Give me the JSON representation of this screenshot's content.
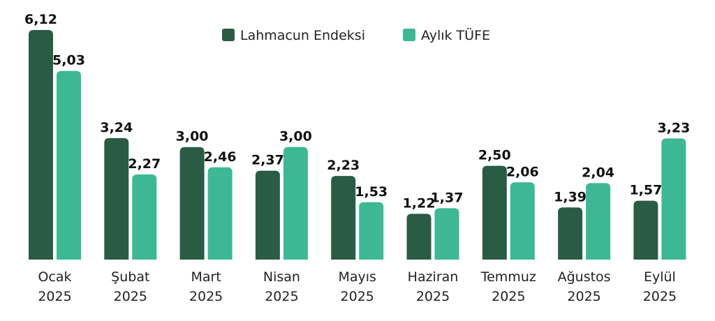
{
  "chart_data": {
    "type": "bar",
    "title": "",
    "xlabel": "",
    "ylabel": "",
    "ylim": [
      0,
      6.12
    ],
    "grid": false,
    "legend_position": "top-center",
    "categories": [
      [
        "Ocak",
        "2025"
      ],
      [
        "Şubat",
        "2025"
      ],
      [
        "Mart",
        "2025"
      ],
      [
        "Nisan",
        "2025"
      ],
      [
        "Mayıs",
        "2025"
      ],
      [
        "Haziran",
        "2025"
      ],
      [
        "Temmuz",
        "2025"
      ],
      [
        "Ağustos",
        "2025"
      ],
      [
        "Eylül",
        "2025"
      ]
    ],
    "series": [
      {
        "name": "Lahmacun Endeksi",
        "color": "#2a5c45",
        "values": [
          6.12,
          3.24,
          3.0,
          2.37,
          2.23,
          1.22,
          2.5,
          1.39,
          1.57
        ],
        "labels": [
          "6,12",
          "3,24",
          "3,00",
          "2,37",
          "2,23",
          "1,22",
          "2,50",
          "1,39",
          "1,57"
        ]
      },
      {
        "name": "Aylık TÜFE",
        "color": "#3cb895",
        "values": [
          5.03,
          2.27,
          2.46,
          3.0,
          1.53,
          1.37,
          2.06,
          2.04,
          3.23
        ],
        "labels": [
          "5,03",
          "2,27",
          "2,46",
          "3,00",
          "1,53",
          "1,37",
          "2,06",
          "2,04",
          "3,23"
        ]
      }
    ]
  }
}
